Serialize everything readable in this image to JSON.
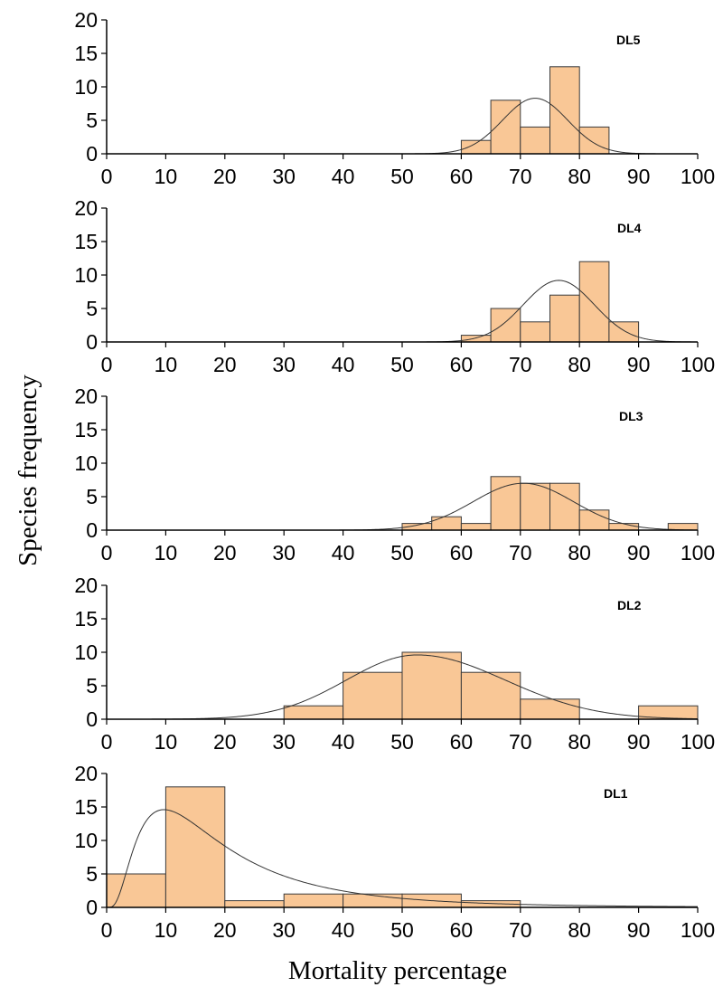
{
  "colors": {
    "bar_fill": "#f9c796",
    "bar_stroke": "#3a3a3a",
    "curve": "#333333",
    "axis": "#000000"
  },
  "chart_data": {
    "type": "bar",
    "subtype": "histogram with fitted density curve",
    "xlabel": "Mortality percentage",
    "ylabel": "Species frequency",
    "xlim": [
      0,
      100
    ],
    "ylim": [
      0,
      20
    ],
    "xticks": [
      0,
      10,
      20,
      30,
      40,
      50,
      60,
      70,
      80,
      90,
      100
    ],
    "yticks": [
      0,
      5,
      10,
      15,
      20
    ],
    "grid": false,
    "panels": [
      {
        "label": "DL5",
        "bins": [
          {
            "x0": 60,
            "x1": 65,
            "count": 2
          },
          {
            "x0": 65,
            "x1": 70,
            "count": 8
          },
          {
            "x0": 70,
            "x1": 75,
            "count": 4
          },
          {
            "x0": 75,
            "x1": 80,
            "count": 13
          },
          {
            "x0": 80,
            "x1": 85,
            "count": 4
          }
        ],
        "curve": {
          "mean": 72.5,
          "sd": 5.5,
          "peak": 8.3
        }
      },
      {
        "label": "DL4",
        "bins": [
          {
            "x0": 60,
            "x1": 65,
            "count": 1
          },
          {
            "x0": 65,
            "x1": 70,
            "count": 5
          },
          {
            "x0": 70,
            "x1": 75,
            "count": 3
          },
          {
            "x0": 75,
            "x1": 80,
            "count": 7
          },
          {
            "x0": 80,
            "x1": 85,
            "count": 12
          },
          {
            "x0": 85,
            "x1": 90,
            "count": 3
          }
        ],
        "curve": {
          "mean": 76.5,
          "sd": 6.0,
          "peak": 9.2
        }
      },
      {
        "label": "DL3",
        "bins": [
          {
            "x0": 50,
            "x1": 55,
            "count": 1
          },
          {
            "x0": 55,
            "x1": 60,
            "count": 2
          },
          {
            "x0": 60,
            "x1": 65,
            "count": 1
          },
          {
            "x0": 65,
            "x1": 70,
            "count": 8
          },
          {
            "x0": 70,
            "x1": 75,
            "count": 7
          },
          {
            "x0": 75,
            "x1": 80,
            "count": 7
          },
          {
            "x0": 80,
            "x1": 85,
            "count": 3
          },
          {
            "x0": 85,
            "x1": 90,
            "count": 1
          },
          {
            "x0": 90,
            "x1": 95,
            "count": 0
          },
          {
            "x0": 95,
            "x1": 100,
            "count": 1
          }
        ],
        "curve": {
          "mean": 70.5,
          "sd": 8.5,
          "peak": 7.0
        }
      },
      {
        "label": "DL2",
        "bins": [
          {
            "x0": 30,
            "x1": 40,
            "count": 2
          },
          {
            "x0": 40,
            "x1": 50,
            "count": 7
          },
          {
            "x0": 50,
            "x1": 60,
            "count": 10
          },
          {
            "x0": 60,
            "x1": 70,
            "count": 7
          },
          {
            "x0": 70,
            "x1": 80,
            "count": 3
          },
          {
            "x0": 80,
            "x1": 90,
            "count": 0
          },
          {
            "x0": 90,
            "x1": 100,
            "count": 2
          }
        ],
        "curve": {
          "mean": 52.5,
          "sd": 12.0,
          "peak": 9.6,
          "skew_right": true
        }
      },
      {
        "label": "DL1",
        "bins": [
          {
            "x0": 0,
            "x1": 10,
            "count": 5
          },
          {
            "x0": 10,
            "x1": 20,
            "count": 18
          },
          {
            "x0": 20,
            "x1": 30,
            "count": 1
          },
          {
            "x0": 30,
            "x1": 40,
            "count": 2
          },
          {
            "x0": 40,
            "x1": 50,
            "count": 2
          },
          {
            "x0": 50,
            "x1": 60,
            "count": 2
          },
          {
            "x0": 60,
            "x1": 70,
            "count": 1
          }
        ],
        "curve": {
          "type": "lognormal",
          "mode": 9.7,
          "peak": 14.6
        }
      }
    ]
  }
}
